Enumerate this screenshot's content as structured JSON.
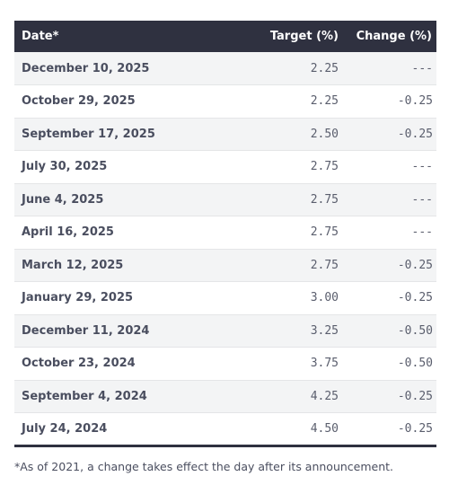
{
  "table": {
    "headers": {
      "date": "Date*",
      "target": "Target (%)",
      "change": "Change (%)"
    },
    "rows": [
      {
        "date": "December 10, 2025",
        "target": "2.25",
        "change": "---"
      },
      {
        "date": "October 29, 2025",
        "target": "2.25",
        "change": "-0.25"
      },
      {
        "date": "September 17, 2025",
        "target": "2.50",
        "change": "-0.25"
      },
      {
        "date": "July 30, 2025",
        "target": "2.75",
        "change": "---"
      },
      {
        "date": "June 4, 2025",
        "target": "2.75",
        "change": "---"
      },
      {
        "date": "April 16, 2025",
        "target": "2.75",
        "change": "---"
      },
      {
        "date": "March 12, 2025",
        "target": "2.75",
        "change": "-0.25"
      },
      {
        "date": "January 29, 2025",
        "target": "3.00",
        "change": "-0.25"
      },
      {
        "date": "December 11, 2024",
        "target": "3.25",
        "change": "-0.50"
      },
      {
        "date": "October 23, 2024",
        "target": "3.75",
        "change": "-0.50"
      },
      {
        "date": "September 4, 2024",
        "target": "4.25",
        "change": "-0.25"
      },
      {
        "date": "July 24, 2024",
        "target": "4.50",
        "change": "-0.25"
      }
    ]
  },
  "footnote": "*As of 2021, a change takes effect the day after its announcement.",
  "colors": {
    "header_bg": "#2f3140",
    "stripe_bg": "#f3f4f5",
    "text": "#4a4e5f"
  }
}
